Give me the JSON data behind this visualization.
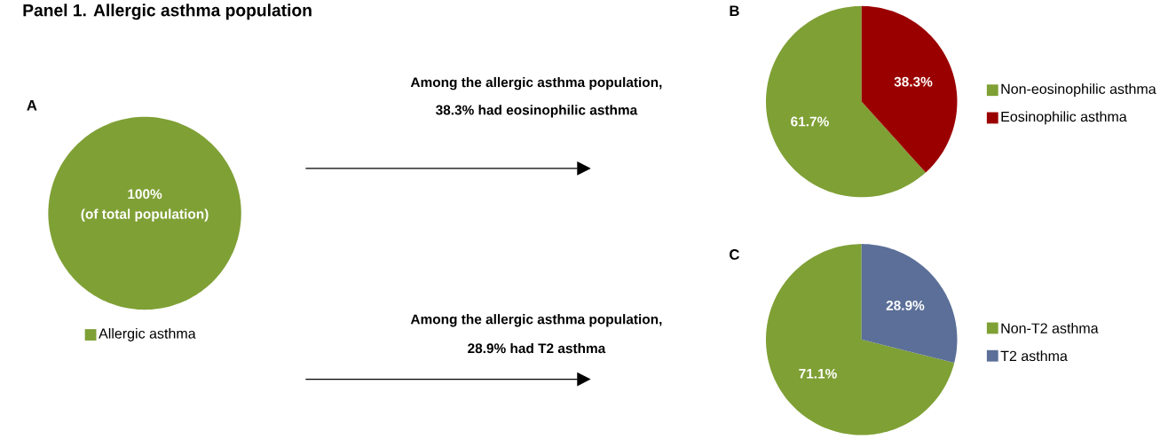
{
  "chart_data": [
    {
      "type": "pie",
      "title": "Panel 1. Allergic asthma population",
      "subtitle": "A",
      "categories": [
        "Allergic asthma"
      ],
      "values": [
        100
      ],
      "colors": [
        "#7fa035"
      ],
      "value_labels": [
        "100%"
      ],
      "annotations": [
        "(of total population)"
      ],
      "legend": "bottom"
    },
    {
      "type": "pie",
      "subtitle": "B",
      "categories": [
        "Non-eosinophilic asthma",
        "Eosinophilic asthma"
      ],
      "values": [
        61.7,
        38.3
      ],
      "colors": [
        "#7fa035",
        "#9b0000"
      ],
      "value_labels": [
        "61.7%",
        "38.3%"
      ],
      "annotations": [
        "Among the allergic asthma population,",
        "38.3% had eosinophilic asthma"
      ],
      "legend": "right"
    },
    {
      "type": "pie",
      "subtitle": "C",
      "categories": [
        "Non-T2 asthma",
        "T2 asthma"
      ],
      "values": [
        71.1,
        28.9
      ],
      "colors": [
        "#7fa035",
        "#5b6f98"
      ],
      "value_labels": [
        "71.1%",
        "28.9%"
      ],
      "annotations": [
        "Among the allergic asthma population,",
        "28.9% had T2 asthma"
      ],
      "legend": "right"
    }
  ]
}
